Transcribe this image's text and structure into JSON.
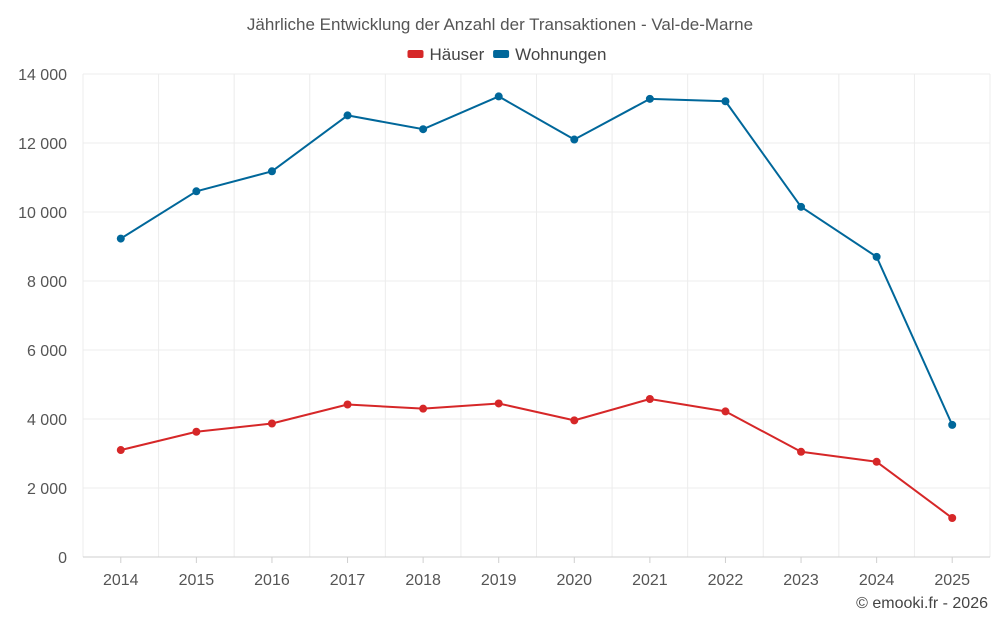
{
  "chart_data": {
    "type": "line",
    "title": "Jährliche Entwicklung der Anzahl der Transaktionen - Val-de-Marne",
    "categories": [
      "2014",
      "2015",
      "2016",
      "2017",
      "2018",
      "2019",
      "2020",
      "2021",
      "2022",
      "2023",
      "2024",
      "2025"
    ],
    "series": [
      {
        "name": "Häuser",
        "color": "#d62728",
        "values": [
          3100,
          3630,
          3870,
          4420,
          4300,
          4450,
          3960,
          4580,
          4220,
          3050,
          2760,
          1130
        ]
      },
      {
        "name": "Wohnungen",
        "color": "#00679a",
        "values": [
          9230,
          10600,
          11180,
          12800,
          12400,
          13350,
          12100,
          13280,
          13210,
          10150,
          8700,
          3830
        ]
      }
    ],
    "ylim": [
      0,
      14000
    ],
    "yticks": [
      0,
      2000,
      4000,
      6000,
      8000,
      10000,
      12000,
      14000
    ],
    "ytick_labels": [
      "0",
      "2 000",
      "4 000",
      "6 000",
      "8 000",
      "10 000",
      "12 000",
      "14 000"
    ],
    "xlabel": "",
    "ylabel": "",
    "grid": true,
    "legend_position": "top-center"
  },
  "credit": "© emooki.fr - 2026"
}
